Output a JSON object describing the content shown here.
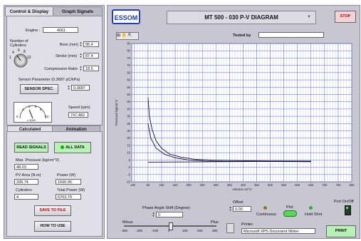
{
  "tabs": {
    "control_display": "Control & Display",
    "graph_signals": "Graph Signals",
    "calculated": "Calculated",
    "animation": "Animation"
  },
  "engine": {
    "label": "Engine :",
    "value": "4061"
  },
  "cylinders_knob": {
    "label": "Number of Cylinders",
    "ticks": [
      "1",
      "4",
      "6",
      "8",
      "12"
    ]
  },
  "bore": {
    "label": "Bore (mm)",
    "value": "95.4"
  },
  "stroke": {
    "label": "Stroke (mm)",
    "value": "87.4"
  },
  "compression": {
    "label": "Compression Ratio",
    "value": "18.5"
  },
  "sensor": {
    "label": "Sensor Parameter (0.3687 pC/kPa)",
    "value": "0.3687",
    "button": "SENSOR SPEC."
  },
  "speed": {
    "gauge_ticks": [
      "0",
      "2",
      "4",
      "6",
      "8",
      "10"
    ],
    "gauge_unit": "x 1000",
    "label": "Speed (rpm)",
    "value": "747,482"
  },
  "calc": {
    "read_signals": "READ SIGNALS",
    "all_data": "ALL DATA",
    "max_pressure_label": "Max. Pressure (kg/cm^2)",
    "max_pressure_value": "48.03",
    "pv_area_label": "PV Area (N.m)",
    "pv_area_value": "335.74",
    "power_label": "Power (W)",
    "power_value": "1690.95",
    "cylinders_label": "Cylinders",
    "cylinders_value": "4",
    "total_power_label": "Total Power (W)",
    "total_power_value": "6763.79",
    "save_button": "SAVE TO FILE",
    "howto_button": "HOW TO USE"
  },
  "header": {
    "logo": "ESSOM",
    "title": "MT 500 - 030  P-V DIAGRAM",
    "stop": "STOP",
    "tested_by_label": "Tested by",
    "tested_by_value": ""
  },
  "chart_data": {
    "type": "line",
    "xlabel": "Volume cm^3",
    "ylabel": "Pressure kg/cm^2",
    "xlim": [
      -10,
      800
    ],
    "ylim": [
      -10,
      85
    ],
    "x_ticks": [
      -10,
      0,
      50,
      100,
      150,
      200,
      250,
      300,
      350,
      400,
      450,
      500,
      550,
      600,
      650,
      700,
      750,
      800
    ],
    "y_ticks": [
      -10,
      -5,
      0,
      5,
      10,
      15,
      20,
      25,
      30,
      35,
      40,
      45,
      50,
      55,
      60,
      65,
      70,
      75,
      80,
      85
    ],
    "series": [
      {
        "name": "",
        "x": [
          50,
          55,
          65,
          80,
          100,
          130,
          170,
          220,
          300,
          400,
          500,
          650
        ],
        "y": [
          48,
          35,
          26,
          18,
          13,
          9,
          7,
          5.5,
          4.8,
          4.5,
          4.3,
          4.2
        ]
      },
      {
        "name": "",
        "x": [
          50,
          60,
          80,
          110,
          150,
          200,
          260,
          330,
          420,
          520,
          650
        ],
        "y": [
          30,
          20,
          13,
          9,
          6.5,
          5,
          4.3,
          4,
          3.9,
          3.9,
          3.8
        ]
      },
      {
        "name": "",
        "x": [
          50,
          150,
          300,
          450,
          650
        ],
        "y": [
          3.5,
          3.6,
          3.8,
          3.9,
          4.1
        ]
      }
    ],
    "grid": true
  },
  "bottom": {
    "phase_label": "Phase Angle Shift (Degree)",
    "phase_value": "0",
    "minus": "Minus",
    "plus": "Plus",
    "slider_ticks": [
      "-300",
      "-200",
      "-100",
      "0",
      "100",
      "200",
      "300"
    ],
    "slider_value": 0,
    "offset_label": "Offset",
    "offset_value": "0.00",
    "continuous": "Continuous",
    "plot": "Plot",
    "hold_shot": "Hold Shot",
    "port_label": "Port On/Off",
    "printer_label": "Printer",
    "printer_value": "Microsoft XPS Document Writer",
    "print_button": "PRINT"
  }
}
